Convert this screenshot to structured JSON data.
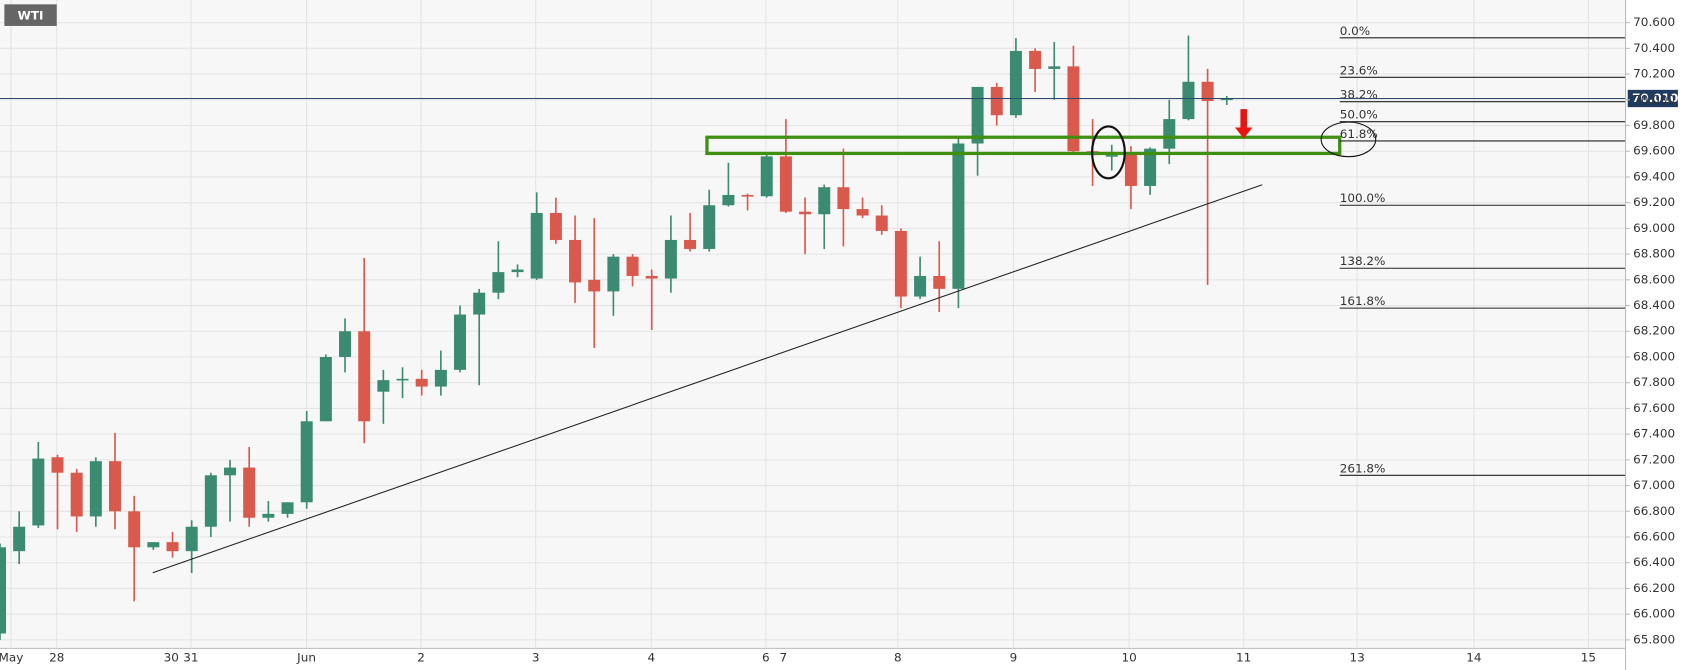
{
  "chart_data": {
    "type": "candlestick",
    "symbol": "WTI",
    "up_color": "#3b8a72",
    "down_color": "#d9594c",
    "ylim": [
      65.734,
      70.776
    ],
    "yticks": [
      {
        "value": 65.8,
        "label": "65.800"
      },
      {
        "value": 66.0,
        "label": "66.000"
      },
      {
        "value": 66.2,
        "label": "66.200"
      },
      {
        "value": 66.4,
        "label": "66.400"
      },
      {
        "value": 66.6,
        "label": "66.600"
      },
      {
        "value": 66.8,
        "label": "66.800"
      },
      {
        "value": 67.0,
        "label": "67.000"
      },
      {
        "value": 67.2,
        "label": "67.200"
      },
      {
        "value": 67.4,
        "label": "67.400"
      },
      {
        "value": 67.6,
        "label": "67.600"
      },
      {
        "value": 67.8,
        "label": "67.800"
      },
      {
        "value": 68.0,
        "label": "68.000"
      },
      {
        "value": 68.2,
        "label": "68.200"
      },
      {
        "value": 68.4,
        "label": "68.400"
      },
      {
        "value": 68.6,
        "label": "68.600"
      },
      {
        "value": 68.8,
        "label": "68.800"
      },
      {
        "value": 69.0,
        "label": "69.000"
      },
      {
        "value": 69.2,
        "label": "69.200"
      },
      {
        "value": 69.4,
        "label": "69.400"
      },
      {
        "value": 69.6,
        "label": "69.600"
      },
      {
        "value": 69.8,
        "label": "69.800"
      },
      {
        "value": 70.0,
        "label": "70.000"
      },
      {
        "value": 70.2,
        "label": "70.200"
      },
      {
        "value": 70.4,
        "label": "70.400"
      },
      {
        "value": 70.6,
        "label": "70.600"
      }
    ],
    "grid": true,
    "xtick_labels": [
      "May",
      "28",
      "30",
      "31",
      "Jun",
      "2",
      "3",
      "4",
      "6",
      "7",
      "8",
      "9",
      "10",
      "11",
      "13",
      "14",
      "15"
    ],
    "current_price": {
      "value": 70.01,
      "label": "70.010"
    },
    "fib_levels": [
      {
        "label": "0.0%",
        "price": 70.482
      },
      {
        "label": "23.6%",
        "price": 70.175
      },
      {
        "label": "38.2%",
        "price": 69.985
      },
      {
        "label": "50.0%",
        "price": 69.83
      },
      {
        "label": "61.8%",
        "price": 69.68
      },
      {
        "label": "100.0%",
        "price": 69.18
      },
      {
        "label": "138.2%",
        "price": 68.69
      },
      {
        "label": "161.8%",
        "price": 68.38
      },
      {
        "label": "261.8%",
        "price": 67.08
      }
    ],
    "open": [
      65.85,
      66.49,
      66.69,
      67.22,
      67.1,
      66.76,
      67.19,
      66.8,
      66.52,
      66.56,
      66.49,
      66.68,
      67.08,
      67.14,
      66.75,
      66.78,
      66.87,
      67.5,
      68.0,
      68.2,
      67.73,
      67.82,
      67.83,
      67.77,
      67.9,
      68.33,
      68.5,
      68.66,
      68.61,
      69.12,
      68.91,
      68.6,
      68.51,
      68.78,
      68.63,
      68.61,
      68.91,
      68.84,
      69.18,
      69.26,
      69.25,
      69.56,
      69.13,
      69.11,
      69.32,
      69.15,
      69.1,
      68.98,
      68.47,
      68.63,
      68.53,
      69.66,
      70.1,
      69.88,
      70.38,
      70.24,
      70.26,
      69.6,
      69.56,
      69.59,
      69.33,
      69.62,
      69.85,
      70.14,
      70.0
    ],
    "high": [
      66.55,
      66.8,
      67.34,
      67.24,
      67.13,
      67.22,
      67.41,
      66.92,
      66.56,
      66.64,
      66.73,
      67.1,
      67.2,
      67.3,
      66.88,
      66.87,
      67.58,
      68.02,
      68.3,
      68.77,
      67.9,
      67.92,
      67.9,
      68.05,
      68.4,
      68.53,
      68.9,
      68.72,
      69.28,
      69.24,
      69.1,
      69.08,
      68.8,
      68.8,
      68.68,
      69.1,
      69.12,
      69.3,
      69.51,
      69.27,
      69.58,
      69.85,
      69.24,
      69.34,
      69.62,
      69.24,
      69.18,
      69.0,
      68.78,
      68.9,
      69.7,
      70.1,
      70.13,
      70.48,
      70.4,
      70.45,
      70.42,
      69.85,
      69.65,
      69.64,
      69.63,
      70.0,
      70.5,
      70.24,
      70.03
    ],
    "low": [
      65.8,
      66.39,
      66.67,
      66.66,
      66.64,
      66.68,
      66.66,
      66.1,
      66.5,
      66.44,
      66.32,
      66.6,
      66.72,
      66.68,
      66.72,
      66.75,
      66.82,
      67.5,
      67.88,
      67.33,
      67.48,
      67.68,
      67.7,
      67.7,
      67.88,
      67.78,
      68.45,
      68.62,
      68.6,
      68.88,
      68.42,
      68.07,
      68.32,
      68.55,
      68.21,
      68.5,
      68.82,
      68.82,
      69.17,
      69.14,
      69.24,
      69.12,
      68.8,
      68.84,
      68.86,
      69.08,
      68.95,
      68.38,
      68.45,
      68.35,
      68.38,
      69.41,
      69.8,
      69.86,
      70.06,
      70.0,
      69.58,
      69.33,
      69.45,
      69.15,
      69.26,
      69.5,
      69.84,
      68.56,
      69.96
    ],
    "close": [
      66.52,
      66.68,
      67.21,
      67.1,
      66.76,
      67.19,
      66.8,
      66.52,
      66.56,
      66.49,
      66.68,
      67.08,
      67.14,
      66.75,
      66.78,
      66.87,
      67.5,
      68.0,
      68.2,
      67.5,
      67.82,
      67.83,
      67.77,
      67.9,
      68.33,
      68.5,
      68.66,
      68.68,
      69.12,
      68.91,
      68.58,
      68.51,
      68.78,
      68.63,
      68.61,
      68.91,
      68.84,
      69.18,
      69.26,
      69.25,
      69.56,
      69.13,
      69.11,
      69.32,
      69.15,
      69.1,
      68.98,
      68.47,
      68.63,
      68.53,
      69.66,
      70.1,
      69.88,
      70.38,
      70.24,
      70.26,
      69.6,
      69.57,
      69.57,
      69.33,
      69.62,
      69.85,
      70.14,
      69.99,
      70.01
    ]
  }
}
